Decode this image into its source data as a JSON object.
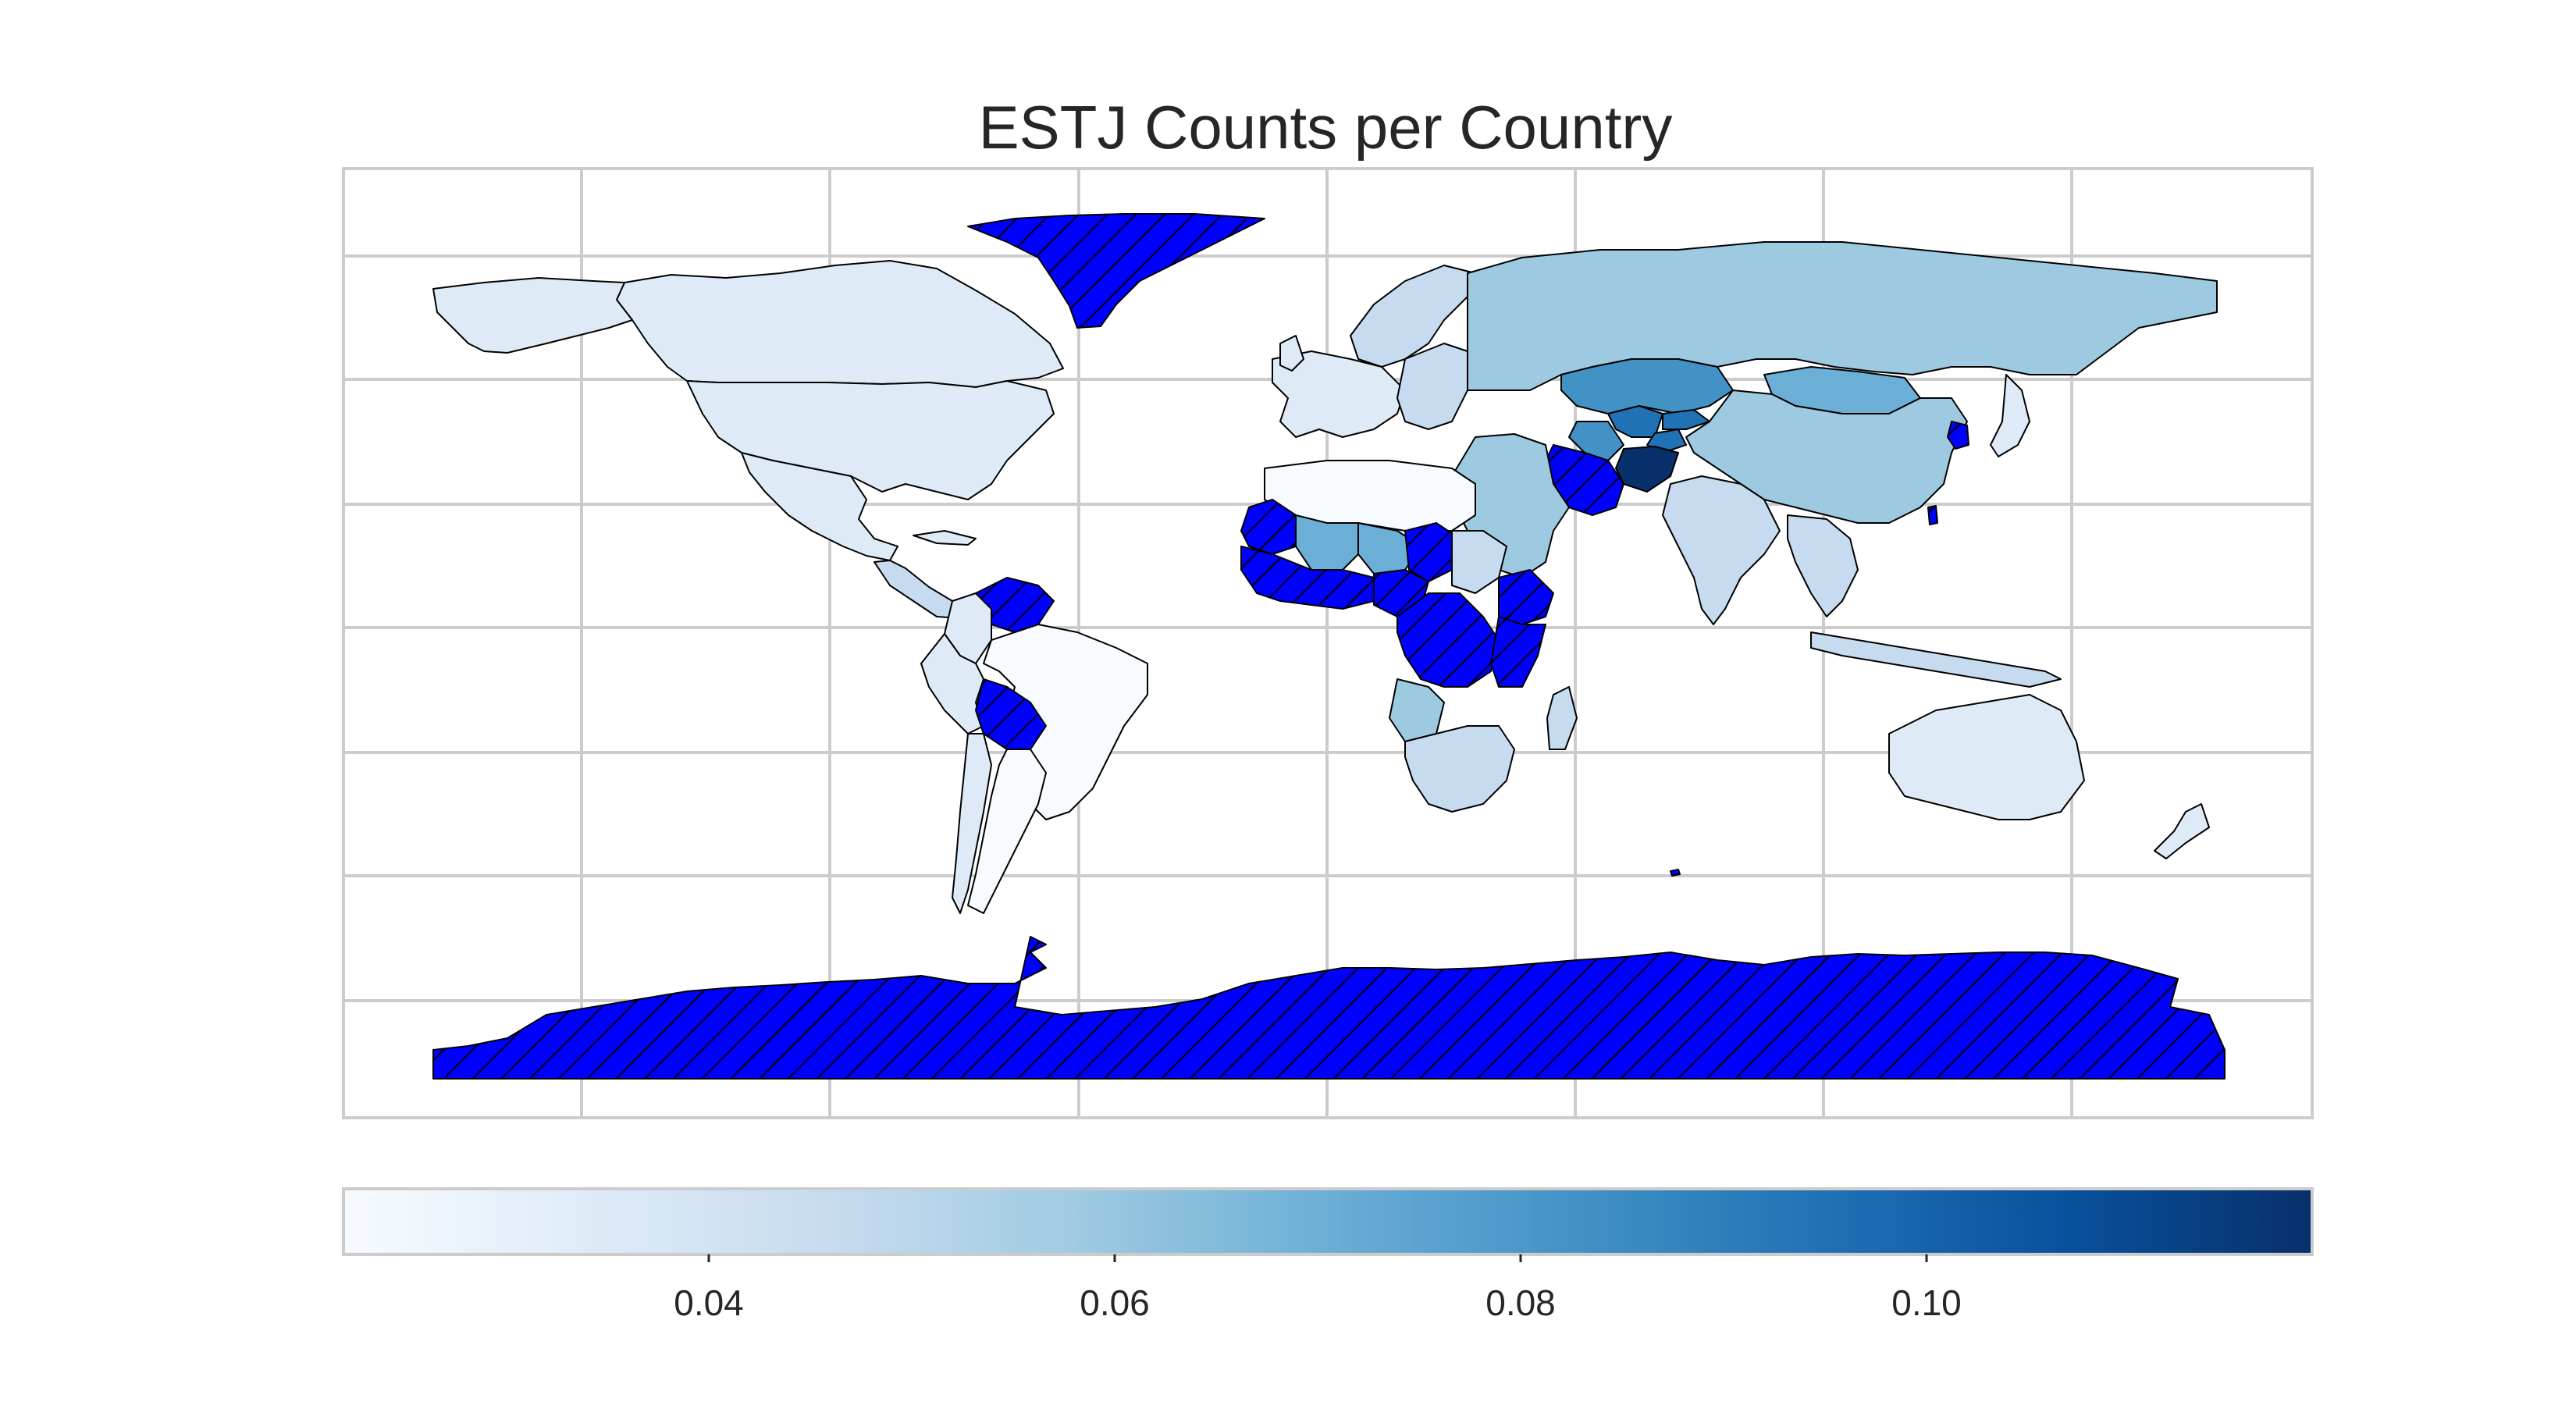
{
  "title": "ESTJ Counts per Country",
  "colormap": {
    "name": "Blues",
    "low_color": "#f7fbff",
    "mid_color": "#9ecae1",
    "high_color": "#08306b",
    "range": [
      0.022,
      0.119
    ],
    "tick_labels": [
      "0.04",
      "0.06",
      "0.08",
      "0.10"
    ],
    "tick_values": [
      0.04,
      0.06,
      0.08,
      0.1
    ]
  },
  "missing_data_style": {
    "fill": "#0000ff",
    "pattern": "diagonal-hatch"
  },
  "chart_data": {
    "type": "choropleth",
    "title": "ESTJ Counts per Country",
    "color_scale": "Blues",
    "value_range": [
      0.022,
      0.119
    ],
    "grid": true,
    "legend": "colorbar-bottom",
    "regions": [
      {
        "name": "Afghanistan",
        "value": 0.115
      },
      {
        "name": "Tajikistan",
        "value": 0.085
      },
      {
        "name": "Kyrgyzstan",
        "value": 0.083
      },
      {
        "name": "Uzbekistan",
        "value": 0.082
      },
      {
        "name": "Turkmenistan",
        "value": 0.08
      },
      {
        "name": "Kazakhstan",
        "value": 0.072
      },
      {
        "name": "Mali",
        "value": 0.065
      },
      {
        "name": "Niger",
        "value": 0.068
      },
      {
        "name": "Mongolia",
        "value": 0.062
      },
      {
        "name": "Russia",
        "value": 0.058
      },
      {
        "name": "Angola",
        "value": 0.056
      },
      {
        "name": "Iraq",
        "value": 0.06
      },
      {
        "name": "Saudi Arabia",
        "value": 0.052
      },
      {
        "name": "Sweden",
        "value": 0.058
      },
      {
        "name": "Finland",
        "value": 0.056
      },
      {
        "name": "China",
        "value": 0.05
      },
      {
        "name": "India",
        "value": 0.045
      },
      {
        "name": "Zambia",
        "value": 0.052
      },
      {
        "name": "South Africa",
        "value": 0.05
      },
      {
        "name": "Egypt",
        "value": 0.047
      },
      {
        "name": "Libya",
        "value": 0.045
      },
      {
        "name": "Algeria",
        "value": 0.035
      },
      {
        "name": "Indonesia",
        "value": 0.047
      },
      {
        "name": "Thailand",
        "value": 0.045
      },
      {
        "name": "Canada",
        "value": 0.036
      },
      {
        "name": "United States",
        "value": 0.034
      },
      {
        "name": "Mexico",
        "value": 0.032
      },
      {
        "name": "Australia",
        "value": 0.034
      },
      {
        "name": "Brazil",
        "value": 0.025
      },
      {
        "name": "Argentina",
        "value": 0.026
      },
      {
        "name": "Peru",
        "value": 0.03
      },
      {
        "name": "Colombia",
        "value": 0.03
      },
      {
        "name": "Chile",
        "value": 0.027
      },
      {
        "name": "Greenland",
        "value": null
      },
      {
        "name": "Antarctica",
        "value": null
      },
      {
        "name": "Venezuela",
        "value": null
      },
      {
        "name": "Bolivia",
        "value": null
      },
      {
        "name": "Iran",
        "value": null
      },
      {
        "name": "Nigeria",
        "value": null
      },
      {
        "name": "DR Congo",
        "value": null
      },
      {
        "name": "Central African Rep.",
        "value": null
      },
      {
        "name": "Chad",
        "value": null
      },
      {
        "name": "Uganda",
        "value": null
      },
      {
        "name": "Tanzania",
        "value": null
      },
      {
        "name": "Ethiopia",
        "value": null
      },
      {
        "name": "Guinea",
        "value": null
      },
      {
        "name": "Cote d'Ivoire",
        "value": null
      },
      {
        "name": "Mauritania",
        "value": null
      },
      {
        "name": "North Korea",
        "value": null
      },
      {
        "name": "Taiwan",
        "value": null
      },
      {
        "name": "French Southern Lands",
        "value": null
      }
    ]
  }
}
